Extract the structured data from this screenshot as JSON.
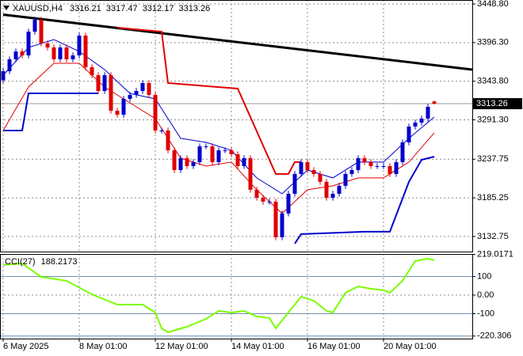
{
  "chart_data": [
    {
      "type": "candlestick",
      "title": "XAUUSD,H4",
      "up_color": "#0000cd",
      "down_color": "#e00000",
      "xlim": [
        -0.5,
        74
      ],
      "ylim": [
        3112.2,
        3454.2
      ],
      "xticks": [
        {
          "value": 0,
          "label": "6 May 2025"
        },
        {
          "value": 12,
          "label": "8 May 01:00"
        },
        {
          "value": 24,
          "label": "12 May 01:00"
        },
        {
          "value": 36,
          "label": "14 May 01:00"
        },
        {
          "value": 48,
          "label": "16 May 01:00"
        },
        {
          "value": 60,
          "label": "20 May 01:00"
        }
      ],
      "yticks": [
        {
          "value": 3448.8,
          "label": "3448.80"
        },
        {
          "value": 3396.3,
          "label": "3396.30"
        },
        {
          "value": 3343.8,
          "label": "3343.80"
        },
        {
          "value": 3291.3,
          "label": "3291.30"
        },
        3237.75,
        3185.25,
        3132.75
      ],
      "grid": true,
      "open": [
        3345.0,
        3357.4,
        3373.6,
        3384.3,
        3378.9,
        3411.2,
        3427.3,
        3395.1,
        3389.7,
        3373.6,
        3389.7,
        3373.6,
        3378.9,
        3405.8,
        3362.8,
        3352.0,
        3330.5,
        3352.0,
        3303.7,
        3298.3,
        3319.8,
        3325.2,
        3330.5,
        3341.3,
        3325.2,
        3276.8,
        3276.8,
        3249.9,
        3223.0,
        3239.2,
        3228.4,
        3233.8,
        3255.3,
        3255.3,
        3233.8,
        3249.9,
        3249.9,
        3244.5,
        3228.4,
        3239.2,
        3196.2,
        3185.4,
        3180.1,
        3180.1,
        3131.7,
        3164.0,
        3190.8,
        3217.7,
        3233.8,
        3223.0,
        3217.7,
        3207.0,
        3185.4,
        3190.8,
        3201.6,
        3217.7,
        3223.0,
        3239.2,
        3233.8,
        3228.4,
        3228.4,
        3228.4,
        3217.7,
        3233.8,
        3260.7,
        3282.2,
        3287.6,
        3293.0,
        3316.21
      ],
      "high": [
        3361.4,
        3377.6,
        3388.3,
        3388.3,
        3415.2,
        3431.3,
        3431.3,
        3399.1,
        3393.7,
        3393.7,
        3393.7,
        3382.9,
        3409.8,
        3409.8,
        3366.8,
        3356.0,
        3356.0,
        3356.0,
        3307.7,
        3323.8,
        3329.2,
        3334.5,
        3345.3,
        3345.3,
        3329.2,
        3280.8,
        3280.8,
        3253.9,
        3243.2,
        3243.2,
        3237.8,
        3259.3,
        3259.3,
        3259.3,
        3253.9,
        3253.9,
        3253.9,
        3248.5,
        3243.2,
        3243.2,
        3200.2,
        3189.4,
        3184.1,
        3184.1,
        3168.0,
        3194.8,
        3221.7,
        3237.8,
        3237.8,
        3227.0,
        3221.7,
        3211.0,
        3194.8,
        3205.6,
        3221.7,
        3227.0,
        3243.2,
        3243.2,
        3237.8,
        3232.4,
        3232.4,
        3232.4,
        3237.8,
        3264.7,
        3286.2,
        3291.6,
        3297.0,
        3313.0,
        3317.47
      ],
      "low": [
        3341.0,
        3353.4,
        3369.6,
        3374.9,
        3374.9,
        3407.2,
        3391.1,
        3385.7,
        3369.6,
        3369.6,
        3369.6,
        3369.6,
        3374.9,
        3358.8,
        3348.0,
        3326.5,
        3326.5,
        3299.7,
        3294.3,
        3294.3,
        3315.8,
        3321.2,
        3326.5,
        3321.2,
        3272.8,
        3272.8,
        3245.9,
        3219.0,
        3219.0,
        3224.4,
        3224.4,
        3229.8,
        3251.3,
        3229.8,
        3229.8,
        3245.9,
        3240.5,
        3224.4,
        3224.4,
        3192.2,
        3181.4,
        3176.1,
        3176.1,
        3127.7,
        3127.7,
        3160.0,
        3186.8,
        3213.7,
        3219.0,
        3213.7,
        3203.0,
        3181.4,
        3181.4,
        3186.8,
        3197.6,
        3213.7,
        3219.0,
        3229.8,
        3224.4,
        3224.4,
        3224.4,
        3213.7,
        3213.7,
        3229.8,
        3256.7,
        3278.2,
        3283.6,
        3289.0,
        3312.17
      ],
      "close": [
        3357.4,
        3373.6,
        3384.3,
        3378.9,
        3411.2,
        3427.3,
        3395.1,
        3389.7,
        3373.6,
        3389.7,
        3373.6,
        3378.9,
        3405.8,
        3362.8,
        3352.0,
        3330.5,
        3352.0,
        3303.7,
        3298.3,
        3319.8,
        3325.2,
        3330.5,
        3341.3,
        3325.2,
        3276.8,
        3276.8,
        3249.9,
        3223.0,
        3239.2,
        3228.4,
        3233.8,
        3255.3,
        3255.3,
        3233.8,
        3249.9,
        3249.9,
        3244.5,
        3228.4,
        3239.2,
        3196.2,
        3185.4,
        3180.1,
        3180.1,
        3131.7,
        3164.0,
        3190.8,
        3217.7,
        3233.8,
        3223.0,
        3217.7,
        3207.0,
        3185.4,
        3190.8,
        3201.6,
        3217.7,
        3223.0,
        3239.2,
        3233.8,
        3228.4,
        3228.4,
        3228.4,
        3217.7,
        3233.8,
        3260.7,
        3282.2,
        3287.6,
        3293.0,
        3309.0,
        3313.26
      ],
      "overlays": [
        {
          "color": "#000000",
          "width": 3,
          "x": [
            0,
            74
          ],
          "values": [
            3434.3,
            3359.6
          ]
        },
        {
          "color": "#e00000",
          "width": 2,
          "x": [
            18,
            25,
            26,
            37,
            43,
            45,
            46,
            47
          ],
          "values": [
            3416.6,
            3411.2,
            3341.3,
            3333.8,
            3217.7,
            3217.7,
            3233.8,
            3233.8
          ]
        },
        {
          "color": "#0000cd",
          "width": 2,
          "x": [
            0,
            3,
            4,
            15,
            30,
            46,
            47,
            57,
            61,
            64,
            66,
            68
          ],
          "values": [
            3276.8,
            3276.8,
            3327.3,
            3327.3,
            null,
            3123.1,
            3136.0,
            3139.2,
            3139.2,
            3206.9,
            3237.0,
            3241.3
          ]
        },
        {
          "color": "#0000cd",
          "width": 1,
          "x": [
            0,
            4,
            8,
            12,
            16,
            20,
            24,
            28,
            32,
            36,
            40,
            44,
            48,
            52,
            56,
            60,
            64,
            68
          ],
          "values": [
            3352.0,
            3389.7,
            3400.4,
            3384.3,
            3359.6,
            3327.3,
            3319.8,
            3266.1,
            3260.7,
            3249.9,
            3212.3,
            3190.8,
            3223.0,
            3212.3,
            3233.8,
            3233.8,
            3266.1,
            3295.1
          ]
        },
        {
          "color": "#e00000",
          "width": 1,
          "x": [
            0,
            4,
            8,
            12,
            16,
            20,
            24,
            28,
            32,
            36,
            40,
            44,
            48,
            52,
            56,
            60,
            64,
            68
          ],
          "values": [
            3276.8,
            3335.9,
            3368.2,
            3368.2,
            3335.9,
            3314.4,
            3292.9,
            3239.2,
            3228.4,
            3233.8,
            3196.2,
            3164.0,
            3196.2,
            3201.6,
            3212.3,
            3212.3,
            3233.8,
            3273.6
          ]
        }
      ]
    },
    {
      "type": "line",
      "title": "CCI(27)",
      "color": "#7cfc00",
      "level_color": "#6f8fb0",
      "ylim": [
        -234,
        221.3
      ],
      "yticks": [
        219.0171,
        100,
        {
          "value": 0,
          "label": "0.00"
        },
        -100,
        -220.306
      ],
      "x": [
        0,
        3,
        6,
        10,
        14,
        18,
        22,
        24,
        25,
        26,
        29,
        32,
        34,
        36,
        38,
        40,
        42,
        43,
        44,
        46,
        47,
        49,
        51,
        52,
        54,
        56,
        58,
        60,
        61,
        63,
        65,
        67,
        68
      ],
      "values": [
        162,
        170,
        98,
        77,
        4,
        -51,
        -51,
        -94,
        -179,
        -200,
        -170,
        -128,
        -85,
        -94,
        -85,
        -115,
        -123,
        -179,
        -136,
        -51,
        -9,
        -30,
        -85,
        -94,
        13,
        47,
        34,
        26,
        13,
        77,
        183,
        196,
        188.2173
      ]
    }
  ]
}
